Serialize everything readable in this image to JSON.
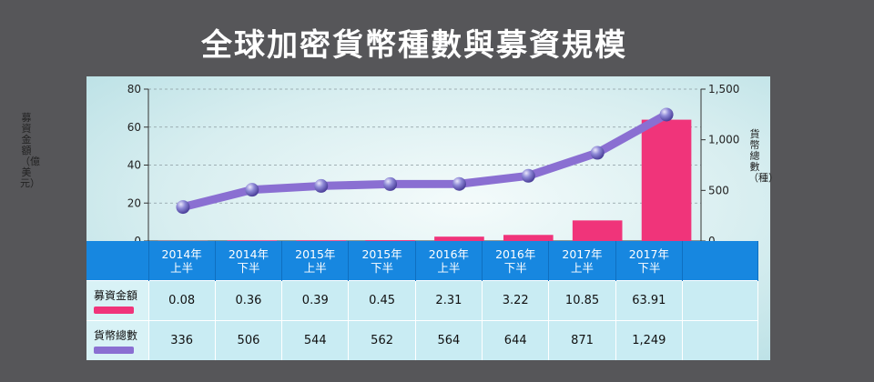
{
  "title": "全球加密貨幣種數與募資規模",
  "colors": {
    "bar": "#f0347a",
    "line": "#8a6fd2",
    "point": "#7c76c9",
    "header": "#1787e0"
  },
  "chart_data": {
    "type": "bar+line",
    "categories": [
      "2014年上半",
      "2014年下半",
      "2015年上半",
      "2015年下半",
      "2016年上半",
      "2016年下半",
      "2017年上半",
      "2017年下半"
    ],
    "category_lines": [
      [
        "2014年",
        "上半"
      ],
      [
        "2014年",
        "下半"
      ],
      [
        "2015年",
        "上半"
      ],
      [
        "2015年",
        "下半"
      ],
      [
        "2016年",
        "上半"
      ],
      [
        "2016年",
        "下半"
      ],
      [
        "2017年",
        "上半"
      ],
      [
        "2017年",
        "下半"
      ]
    ],
    "series": [
      {
        "name": "募資金額",
        "axis": "left",
        "kind": "bar",
        "values": [
          0.08,
          0.36,
          0.39,
          0.45,
          2.31,
          3.22,
          10.85,
          63.91
        ],
        "labels": [
          "0.08",
          "0.36",
          "0.39",
          "0.45",
          "2.31",
          "3.22",
          "10.85",
          "63.91"
        ]
      },
      {
        "name": "貨幣總數",
        "axis": "right",
        "kind": "line",
        "values": [
          336,
          506,
          544,
          562,
          564,
          644,
          871,
          1249
        ],
        "labels": [
          "336",
          "506",
          "544",
          "562",
          "564",
          "644",
          "871",
          "1,249"
        ]
      }
    ],
    "ylabel_left": "募資金額（億美元）",
    "ylabel_right": "貨幣總數（種）",
    "ylim_left": [
      0,
      80
    ],
    "ylim_right": [
      0,
      1500
    ],
    "yticks_left": [
      "0",
      "20",
      "40",
      "60",
      "80"
    ],
    "yticks_right": [
      "0",
      "500",
      "1,000",
      "1,500"
    ],
    "grid": true
  }
}
